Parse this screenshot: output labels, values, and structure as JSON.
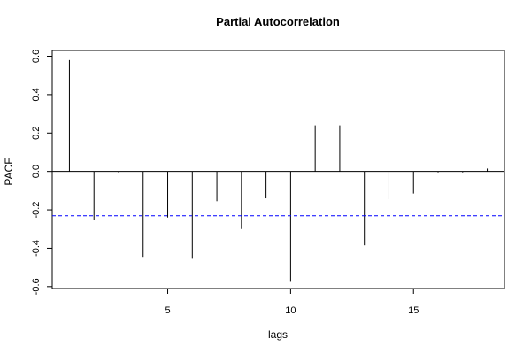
{
  "chart_data": {
    "type": "bar",
    "title": "Partial Autocorrelation",
    "xlabel": "lags",
    "ylabel": "PACF",
    "x": [
      1,
      2,
      3,
      4,
      5,
      6,
      7,
      8,
      9,
      10,
      11,
      12,
      13,
      14,
      15,
      16,
      17,
      18
    ],
    "values": [
      0.58,
      -0.255,
      -0.005,
      -0.445,
      -0.24,
      -0.455,
      -0.155,
      -0.3,
      -0.14,
      -0.575,
      0.24,
      0.24,
      -0.385,
      -0.145,
      -0.115,
      -0.005,
      -0.005,
      0.015
    ],
    "confidence_limits": [
      0.231,
      -0.231
    ],
    "xlim": [
      0.3,
      18.7
    ],
    "ylim": [
      -0.61,
      0.63
    ],
    "xticks": [
      5,
      10,
      15
    ],
    "yticks": [
      -0.6,
      -0.4,
      -0.2,
      0.0,
      0.2,
      0.4,
      0.6
    ],
    "ytick_labels": [
      "-0.6",
      "-0.4",
      "-0.2",
      "0.0",
      "0.2",
      "0.4",
      "0.6"
    ],
    "grid": false,
    "colors": {
      "bars": "#000000",
      "confidence": "#0000ff",
      "zero_line": "#000000"
    }
  }
}
